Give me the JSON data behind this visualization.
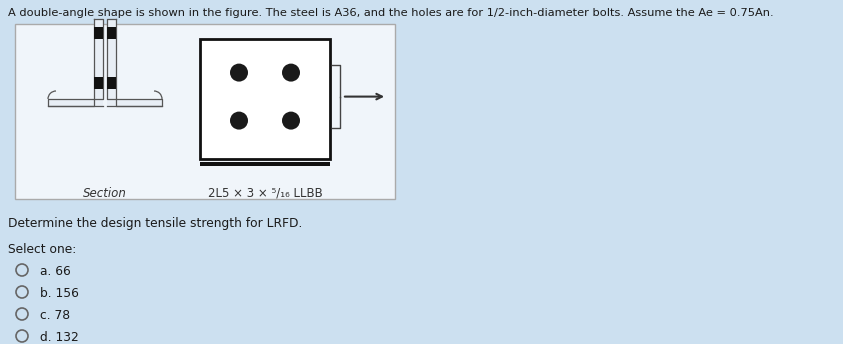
{
  "background_color": "#cce0f0",
  "title_text": "A double-angle shape is shown in the figure. The steel is A36, and the holes are for 1/2-inch-diameter bolts. Assume the Ae = 0.75An.",
  "question_text": "Determine the design tensile strength for LRFD.",
  "select_one_text": "Select one:",
  "options": [
    "a. 66",
    "b. 156",
    "c. 78",
    "d. 132"
  ],
  "section_label": "Section",
  "section_detail": "2L5 × 3 × ⁵/₁₆ LLBB",
  "box_bg": "#f0f5fa",
  "dot_color": "#1a1a1a",
  "fig_border": "#aaaaaa",
  "cs_border": "#111111",
  "angle_outline": "#555555",
  "angle_fill_dark": "#111111",
  "angle_fill_light": "#e8eef5"
}
